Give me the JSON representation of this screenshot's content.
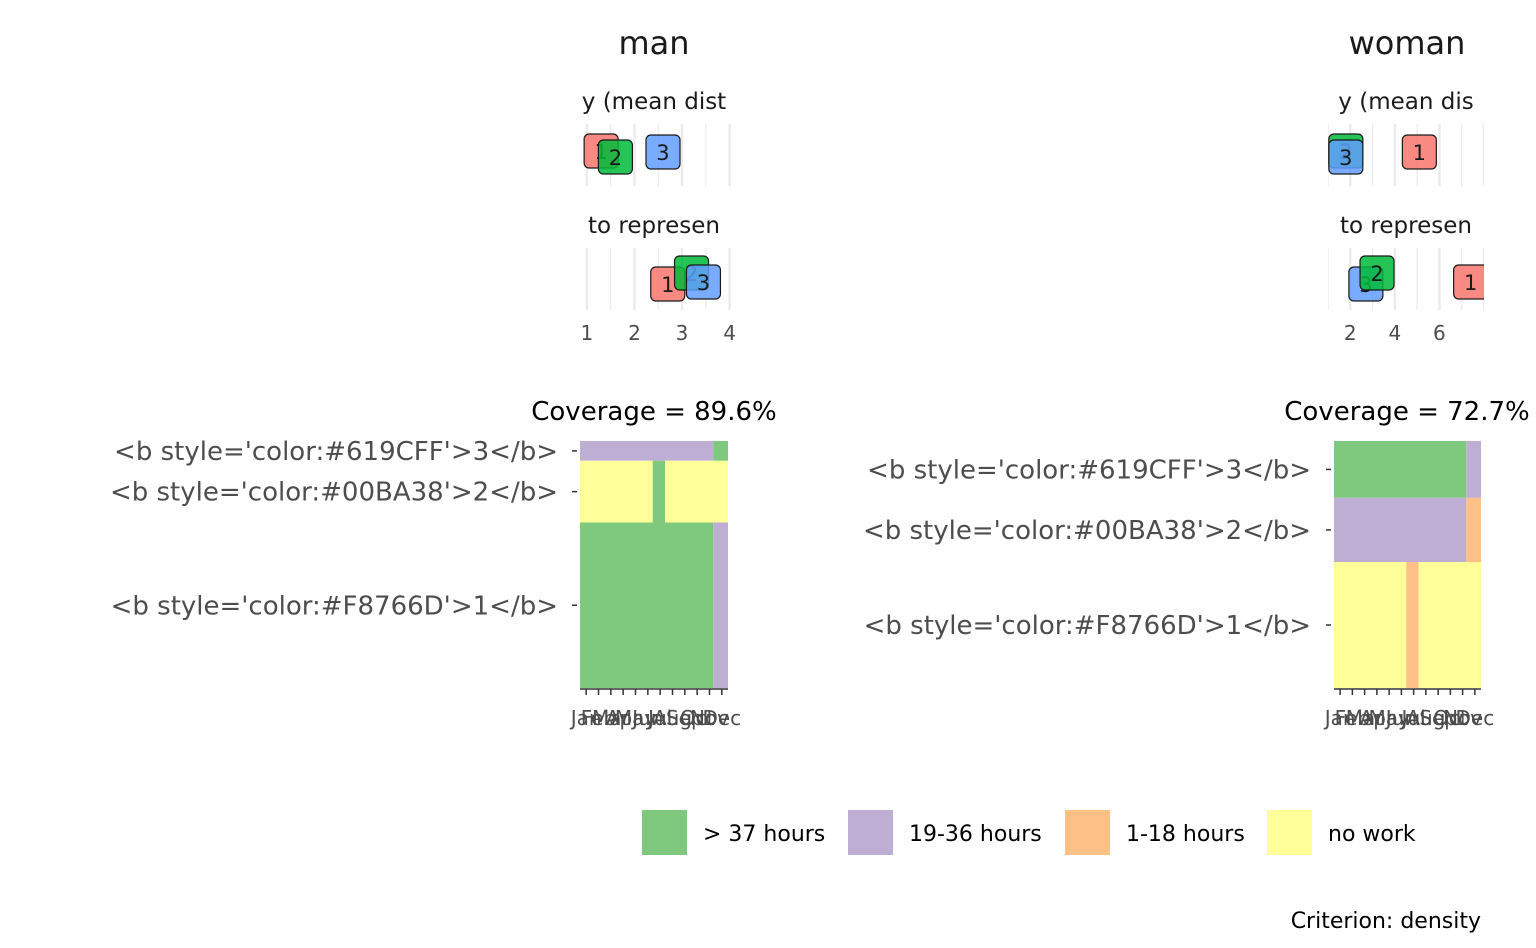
{
  "colors": {
    "cluster_1": "#F8766D",
    "cluster_2": "#00BA38",
    "cluster_3": "#619CFF",
    "state_gt37": "#7FC97F",
    "state_19_36": "#BEAED4",
    "state_1_18": "#FDC086",
    "state_nowork": "#FFFF99",
    "grid": "#EBEBEB",
    "text": "#4D4D4D",
    "title": "#1A1A1A"
  },
  "legend": {
    "items": [
      {
        "label": "> 37 hours",
        "color": "#7FC97F"
      },
      {
        "label": "19-36 hours",
        "color": "#BEAED4"
      },
      {
        "label": "1-18 hours",
        "color": "#FDC086"
      },
      {
        "label": "no work",
        "color": "#FFFF99"
      }
    ]
  },
  "caption": "Criterion: density",
  "chart_data": [
    {
      "panel": "man",
      "type": "scatter",
      "title": "man",
      "rows": [
        {
          "label": "y (mean dist",
          "points": [
            {
              "cluster": "1",
              "x": 1.3
            },
            {
              "cluster": "2",
              "x": 1.6
            },
            {
              "cluster": "3",
              "x": 2.6
            }
          ]
        },
        {
          "label": "to represen",
          "points": [
            {
              "cluster": "1",
              "x": 2.7
            },
            {
              "cluster": "2",
              "x": 3.2
            },
            {
              "cluster": "3",
              "x": 3.45
            }
          ]
        }
      ],
      "x_ticks": [
        "1",
        "2",
        "3",
        "4"
      ],
      "xlim": [
        0.73,
        4.05
      ]
    },
    {
      "panel": "woman",
      "type": "scatter",
      "title": "woman",
      "rows": [
        {
          "label": "y (mean dis",
          "points": [
            {
              "cluster": "2",
              "x": 1.8
            },
            {
              "cluster": "3",
              "x": 1.8
            },
            {
              "cluster": "1",
              "x": 5.1
            }
          ]
        },
        {
          "label": "to represen",
          "points": [
            {
              "cluster": "3",
              "x": 2.7
            },
            {
              "cluster": "2",
              "x": 3.2
            },
            {
              "cluster": "1",
              "x": 7.4
            }
          ]
        }
      ],
      "x_ticks": [
        "2",
        "4",
        "6"
      ],
      "xlim": [
        1.0,
        8.0
      ]
    },
    {
      "panel": "man",
      "type": "heatmap",
      "title": "Coverage = 89.6%",
      "months": [
        "Jan",
        "Feb",
        "Mar",
        "Apr",
        "May",
        "Jun",
        "Jul",
        "Aug",
        "Sep",
        "Oct",
        "Nov",
        "Dec"
      ],
      "groups": [
        {
          "label": "<b style='color:#619CFF'>3</b>",
          "share": 0.08,
          "segments": [
            {
              "state": "19-36 hours",
              "from": 0,
              "to": 10.8
            },
            {
              "state": "> 37 hours",
              "from": 10.8,
              "to": 12
            }
          ]
        },
        {
          "label": "<b style='color:#00BA38'>2</b>",
          "share": 0.25,
          "segments": [
            {
              "state": "no work",
              "from": 0,
              "to": 5.9
            },
            {
              "state": "> 37 hours",
              "from": 5.9,
              "to": 6.9
            },
            {
              "state": "no work",
              "from": 6.9,
              "to": 12
            }
          ]
        },
        {
          "label": "<b style='color:#F8766D'>1</b>",
          "share": 0.67,
          "segments": [
            {
              "state": "> 37 hours",
              "from": 0,
              "to": 10.8
            },
            {
              "state": "19-36 hours",
              "from": 10.8,
              "to": 12
            }
          ]
        }
      ]
    },
    {
      "panel": "woman",
      "type": "heatmap",
      "title": "Coverage = 72.7%",
      "months": [
        "Jan",
        "Feb",
        "Mar",
        "Apr",
        "May",
        "Jun",
        "Jul",
        "Aug",
        "Sep",
        "Oct",
        "Nov",
        "Dec"
      ],
      "groups": [
        {
          "label": "<b style='color:#619CFF'>3</b>",
          "share": 0.23,
          "segments": [
            {
              "state": "> 37 hours",
              "from": 0,
              "to": 10.8
            },
            {
              "state": "19-36 hours",
              "from": 10.8,
              "to": 12
            }
          ]
        },
        {
          "label": "<b style='color:#00BA38'>2</b>",
          "share": 0.26,
          "segments": [
            {
              "state": "19-36 hours",
              "from": 0,
              "to": 10.8
            },
            {
              "state": "1-18 hours",
              "from": 10.8,
              "to": 12
            }
          ]
        },
        {
          "label": "<b style='color:#F8766D'>1</b>",
          "share": 0.51,
          "segments": [
            {
              "state": "no work",
              "from": 0,
              "to": 5.9
            },
            {
              "state": "1-18 hours",
              "from": 5.9,
              "to": 6.9
            },
            {
              "state": "no work",
              "from": 6.9,
              "to": 12
            }
          ]
        }
      ]
    }
  ]
}
